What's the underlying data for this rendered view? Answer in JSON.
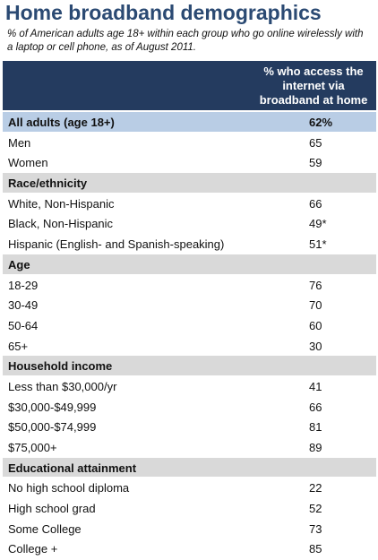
{
  "header": {
    "title": "Home broadband demographics",
    "subtitle": "% of American adults age 18+ within each group who go online wirelessly with a laptop or cell phone, as of August 2011."
  },
  "table": {
    "column_header": "% who access the internet via broadband at home",
    "total": {
      "label": "All adults (age 18+)",
      "value": "62%"
    },
    "groups": [
      {
        "rows": [
          {
            "label": "Men",
            "value": "65"
          },
          {
            "label": "Women",
            "value": "59"
          }
        ]
      },
      {
        "heading": "Race/ethnicity",
        "rows": [
          {
            "label": "White, Non-Hispanic",
            "value": "66"
          },
          {
            "label": "Black, Non-Hispanic",
            "value": "49*"
          },
          {
            "label": "Hispanic (English- and Spanish-speaking)",
            "value": "51*"
          }
        ]
      },
      {
        "heading": "Age",
        "rows": [
          {
            "label": "18-29",
            "value": "76"
          },
          {
            "label": "30-49",
            "value": "70"
          },
          {
            "label": "50-64",
            "value": "60"
          },
          {
            "label": "65+",
            "value": "30"
          }
        ]
      },
      {
        "heading": "Household income",
        "rows": [
          {
            "label": "Less than $30,000/yr",
            "value": "41"
          },
          {
            "label": "$30,000-$49,999",
            "value": "66"
          },
          {
            "label": "$50,000-$74,999",
            "value": "81"
          },
          {
            "label": "$75,000+",
            "value": "89"
          }
        ]
      },
      {
        "heading": "Educational attainment",
        "rows": [
          {
            "label": "No high school diploma",
            "value": "22"
          },
          {
            "label": "High school grad",
            "value": "52"
          },
          {
            "label": "Some College",
            "value": "73"
          },
          {
            "label": "College +",
            "value": "85"
          }
        ]
      }
    ]
  }
}
